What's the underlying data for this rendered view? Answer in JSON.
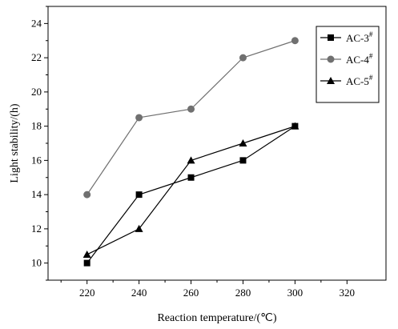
{
  "chart_data": {
    "type": "line",
    "title": "",
    "xlabel": "Reaction temperature/(℃)",
    "ylabel": "Light stability/(h)",
    "xlim": [
      205,
      335
    ],
    "ylim": [
      9,
      25
    ],
    "x_ticks": [
      220,
      240,
      260,
      280,
      300,
      320
    ],
    "y_ticks": [
      10,
      12,
      14,
      16,
      18,
      20,
      22,
      24
    ],
    "legend_position": "top-right",
    "grid": false,
    "series": [
      {
        "name": "AC-3",
        "sup": "#",
        "marker": "square",
        "color": "#000000",
        "x": [
          220,
          240,
          260,
          280,
          300
        ],
        "y": [
          10,
          14,
          15,
          16,
          18
        ]
      },
      {
        "name": "AC-4",
        "sup": "#",
        "marker": "circle",
        "color": "#707070",
        "x": [
          220,
          240,
          260,
          280,
          300
        ],
        "y": [
          14,
          18.5,
          19,
          22,
          23
        ]
      },
      {
        "name": "AC-5",
        "sup": "#",
        "marker": "triangle",
        "color": "#000000",
        "x": [
          220,
          240,
          260,
          280,
          300
        ],
        "y": [
          10.5,
          12,
          16,
          17,
          18
        ]
      }
    ]
  }
}
